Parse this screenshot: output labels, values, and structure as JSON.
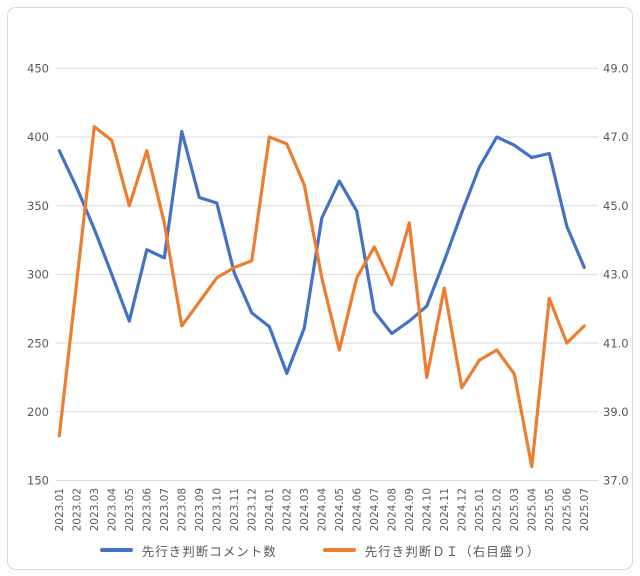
{
  "chart_data": {
    "type": "line",
    "title": "",
    "categories": [
      "2023.01",
      "2023.02",
      "2023.03",
      "2023.04",
      "2023.05",
      "2023.06",
      "2023.07",
      "2023.08",
      "2023.09",
      "2023.10",
      "2023.11",
      "2023.12",
      "2024.01",
      "2024.02",
      "2024.03",
      "2024.04",
      "2024.05",
      "2024.06",
      "2024.07",
      "2024.08",
      "2024.09",
      "2024.10",
      "2024.11",
      "2024.12",
      "2025.01",
      "2025.02",
      "2025.03",
      "2025.04",
      "2025.05",
      "2025.06",
      "2025.07"
    ],
    "series": [
      {
        "name": "先行き判断コメント数",
        "axis": "left",
        "color": "#4472C4",
        "values": [
          390,
          363,
          333,
          300,
          266,
          318,
          312,
          404,
          356,
          352,
          301,
          272,
          262,
          228,
          261,
          341,
          368,
          346,
          273,
          257,
          266,
          277,
          310,
          345,
          378,
          400,
          394,
          385,
          388,
          335,
          305
        ]
      },
      {
        "name": "先行き判断ＤＩ（右目盛り）",
        "axis": "right",
        "color": "#ED7D31",
        "values": [
          38.3,
          42.8,
          47.3,
          46.9,
          45.0,
          46.6,
          44.5,
          41.5,
          42.2,
          42.9,
          43.2,
          43.4,
          47.0,
          46.8,
          45.6,
          42.9,
          40.8,
          42.9,
          43.8,
          42.7,
          44.5,
          40.0,
          42.6,
          39.7,
          40.5,
          40.8,
          40.1,
          37.4,
          42.3,
          41.0,
          41.5
        ]
      }
    ],
    "left_axis": {
      "min": 150,
      "max": 450,
      "ticks": [
        "450",
        "400",
        "350",
        "300",
        "250",
        "200",
        "150"
      ]
    },
    "right_axis": {
      "min": 37,
      "max": 49,
      "ticks": [
        "49.0",
        "47.0",
        "45.0",
        "43.0",
        "41.0",
        "39.0",
        "37.0"
      ]
    },
    "grid": true,
    "legend_position": "bottom",
    "grid_color": "#d9d9d9",
    "axis_text_color": "#595959"
  }
}
